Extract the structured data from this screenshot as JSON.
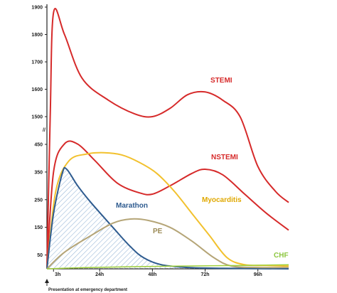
{
  "chart_data": {
    "type": "line",
    "x_ticks": [
      "3h",
      "24h",
      "48h",
      "72h",
      "96h"
    ],
    "y_ticks": [
      "50",
      "150",
      "250",
      "350",
      "450",
      "1500",
      "1600",
      "1700",
      "1800",
      "1900"
    ],
    "axis_break_label": "//",
    "caption": "Presentation at emergency department",
    "series": [
      {
        "name": "STEMI",
        "color": "#d62a2a",
        "values": [
          [
            0,
            0
          ],
          [
            1.5,
            1500
          ],
          [
            3,
            1880
          ],
          [
            8,
            1800
          ],
          [
            16,
            1640
          ],
          [
            28,
            1560
          ],
          [
            40,
            1510
          ],
          [
            48,
            1500
          ],
          [
            56,
            1530
          ],
          [
            64,
            1580
          ],
          [
            72,
            1590
          ],
          [
            80,
            1560
          ],
          [
            88,
            1480
          ],
          [
            96,
            370
          ],
          [
            104,
            280
          ],
          [
            110,
            240
          ]
        ]
      },
      {
        "name": "NSTEMI",
        "color": "#d62a2a",
        "values": [
          [
            0,
            0
          ],
          [
            3,
            350
          ],
          [
            8,
            470
          ],
          [
            14,
            460
          ],
          [
            22,
            390
          ],
          [
            32,
            310
          ],
          [
            42,
            275
          ],
          [
            48,
            270
          ],
          [
            56,
            300
          ],
          [
            66,
            345
          ],
          [
            72,
            360
          ],
          [
            80,
            340
          ],
          [
            90,
            270
          ],
          [
            100,
            200
          ],
          [
            110,
            140
          ]
        ]
      },
      {
        "name": "Myocarditis",
        "color": "#f2c12e",
        "values": [
          [
            0,
            0
          ],
          [
            4,
            280
          ],
          [
            10,
            390
          ],
          [
            18,
            415
          ],
          [
            26,
            420
          ],
          [
            34,
            412
          ],
          [
            42,
            385
          ],
          [
            50,
            345
          ],
          [
            58,
            280
          ],
          [
            66,
            200
          ],
          [
            74,
            120
          ],
          [
            82,
            40
          ],
          [
            90,
            15
          ],
          [
            100,
            12
          ],
          [
            110,
            10
          ]
        ]
      },
      {
        "name": "Marathon",
        "color": "#2e5b8f",
        "values": [
          [
            0,
            0
          ],
          [
            3,
            200
          ],
          [
            7,
            345
          ],
          [
            9,
            360
          ],
          [
            14,
            300
          ],
          [
            20,
            240
          ],
          [
            30,
            150
          ],
          [
            38,
            80
          ],
          [
            44,
            40
          ],
          [
            52,
            15
          ],
          [
            64,
            5
          ],
          [
            80,
            2
          ],
          [
            110,
            0
          ]
        ]
      },
      {
        "name": "PE",
        "color": "#b5a577",
        "values": [
          [
            0,
            0
          ],
          [
            8,
            60
          ],
          [
            20,
            120
          ],
          [
            30,
            165
          ],
          [
            38,
            180
          ],
          [
            46,
            175
          ],
          [
            56,
            150
          ],
          [
            66,
            100
          ],
          [
            76,
            40
          ],
          [
            84,
            10
          ],
          [
            96,
            5
          ],
          [
            110,
            5
          ]
        ]
      },
      {
        "name": "CHF",
        "color": "#9ecf3a",
        "values": [
          [
            0,
            0
          ],
          [
            20,
            5
          ],
          [
            60,
            10
          ],
          [
            90,
            12
          ],
          [
            110,
            15
          ]
        ]
      }
    ]
  }
}
